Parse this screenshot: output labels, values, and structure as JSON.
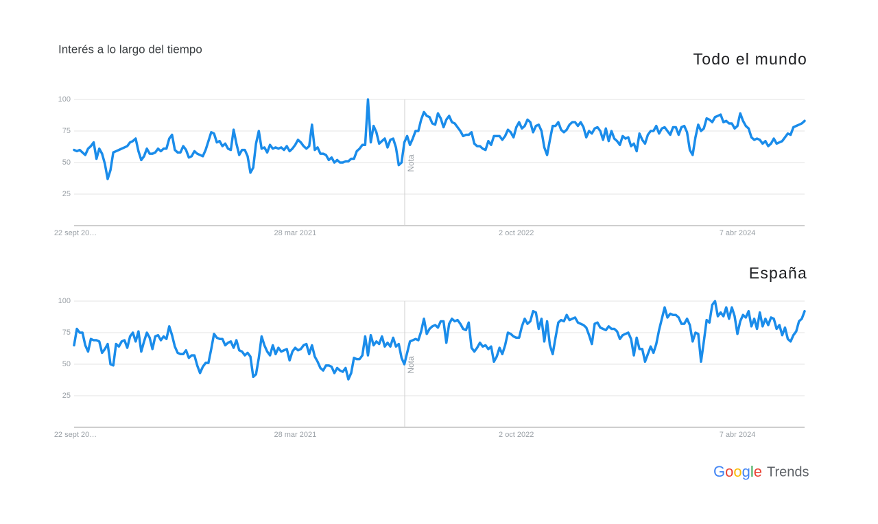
{
  "header": {
    "title": "Interés a lo largo del tiempo"
  },
  "footer": {
    "brand": "Google",
    "product": "Trends"
  },
  "chart_data": [
    {
      "type": "line",
      "title": "Todo el mundo",
      "annotation": "Nota",
      "color": "#1a8cea",
      "ylim": [
        0,
        100
      ],
      "yticks": [
        25,
        50,
        75,
        100
      ],
      "grid": true,
      "categories": [
        "22 sept 20…",
        null,
        null,
        null,
        null,
        null,
        null,
        null,
        null,
        null,
        null,
        null,
        null,
        null,
        null,
        null,
        null,
        null,
        null,
        null,
        null,
        null,
        null,
        null,
        null,
        null,
        null,
        null,
        null,
        null,
        null,
        null,
        null,
        null,
        null,
        null,
        null,
        null,
        null,
        null,
        null,
        null,
        null,
        null,
        null,
        null,
        null,
        null,
        null,
        null,
        null,
        null,
        null,
        null,
        null,
        null,
        null,
        null,
        null,
        null,
        null,
        null,
        null,
        null,
        null,
        null,
        null,
        null,
        null,
        null,
        null,
        null,
        null,
        null,
        null,
        null,
        null,
        null,
        null,
        "28 mar 2021",
        null,
        null,
        null,
        null,
        null,
        null,
        null,
        null,
        null,
        null,
        null,
        null,
        null,
        null,
        null,
        null,
        null,
        null,
        null,
        null,
        null,
        null,
        null,
        null,
        null,
        null,
        null,
        null,
        null,
        null,
        null,
        null,
        null,
        null,
        null,
        null,
        null,
        null,
        null,
        null,
        null,
        null,
        null,
        null,
        null,
        null,
        null,
        null,
        null,
        null,
        null,
        null,
        null,
        null,
        null,
        null,
        null,
        null,
        null,
        null,
        null,
        null,
        null,
        null,
        null,
        null,
        null,
        null,
        null,
        null,
        null,
        null,
        null,
        null,
        null,
        null,
        null,
        null,
        "2 oct 2022",
        null,
        null,
        null,
        null,
        null,
        null,
        null,
        null,
        null,
        null,
        null,
        null,
        null,
        null,
        null,
        null,
        null,
        null,
        null,
        null,
        null,
        null,
        null,
        null,
        null,
        null,
        null,
        null,
        null,
        null,
        null,
        null,
        null,
        null,
        null,
        null,
        null,
        null,
        null,
        null,
        null,
        null,
        null,
        null,
        null,
        null,
        null,
        null,
        null,
        null,
        null,
        null,
        null,
        null,
        null,
        null,
        null,
        null,
        null,
        null,
        null,
        null,
        null,
        null,
        null,
        null,
        null,
        null,
        null,
        null,
        null,
        null,
        null,
        null,
        null,
        null,
        null,
        null,
        "7 abr 2024",
        null,
        null,
        null,
        null,
        null,
        null,
        null,
        null,
        null,
        null,
        null,
        null,
        null,
        null,
        null,
        null,
        null,
        null,
        null,
        null,
        null,
        null,
        null,
        null
      ],
      "values": [
        60,
        59,
        60,
        58,
        56,
        61,
        63,
        66,
        53,
        61,
        57,
        49,
        37,
        44,
        58,
        59,
        60,
        61,
        62,
        63,
        66,
        67,
        69,
        59,
        52,
        55,
        61,
        57,
        57,
        58,
        61,
        59,
        61,
        61,
        69,
        72,
        60,
        58,
        58,
        63,
        60,
        54,
        55,
        59,
        57,
        56,
        55,
        60,
        67,
        74,
        73,
        66,
        67,
        63,
        65,
        61,
        60,
        76,
        65,
        56,
        60,
        60,
        55,
        42,
        46,
        65,
        75,
        61,
        62,
        58,
        64,
        61,
        62,
        61,
        62,
        60,
        63,
        59,
        61,
        64,
        68,
        66,
        63,
        61,
        63,
        80,
        60,
        62,
        57,
        57,
        56,
        52,
        54,
        50,
        52,
        50,
        50,
        51,
        51,
        53,
        53,
        59,
        61,
        64,
        64,
        100,
        66,
        79,
        74,
        65,
        67,
        69,
        62,
        68,
        69,
        62,
        48,
        50,
        66,
        71,
        64,
        69,
        75,
        75,
        84,
        90,
        87,
        86,
        81,
        80,
        89,
        85,
        78,
        84,
        87,
        82,
        81,
        78,
        75,
        71,
        72,
        72,
        74,
        65,
        63,
        63,
        61,
        60,
        67,
        64,
        71,
        71,
        71,
        68,
        71,
        76,
        74,
        70,
        78,
        82,
        77,
        79,
        84,
        82,
        74,
        79,
        80,
        75,
        62,
        56,
        68,
        79,
        79,
        82,
        76,
        74,
        76,
        80,
        82,
        82,
        79,
        82,
        78,
        70,
        75,
        73,
        77,
        78,
        75,
        68,
        77,
        67,
        75,
        69,
        67,
        64,
        71,
        69,
        70,
        63,
        65,
        59,
        73,
        68,
        65,
        72,
        75,
        75,
        79,
        73,
        77,
        78,
        75,
        72,
        78,
        78,
        72,
        78,
        79,
        74,
        60,
        56,
        70,
        80,
        75,
        77,
        85,
        84,
        82,
        86,
        87,
        88,
        82,
        83,
        81,
        81,
        77,
        79,
        89,
        83,
        79,
        77,
        70,
        68,
        69,
        68,
        65,
        67,
        63,
        65,
        69,
        65,
        66,
        67,
        70,
        73,
        72,
        78,
        79,
        80,
        81,
        83
      ]
    },
    {
      "type": "line",
      "title": "España",
      "annotation": "Nota",
      "color": "#1a8cea",
      "ylim": [
        0,
        100
      ],
      "yticks": [
        25,
        50,
        75,
        100
      ],
      "grid": true,
      "categories": [
        "22 sept 20…",
        null,
        null,
        null,
        null,
        null,
        null,
        null,
        null,
        null,
        null,
        null,
        null,
        null,
        null,
        null,
        null,
        null,
        null,
        null,
        null,
        null,
        null,
        null,
        null,
        null,
        null,
        null,
        null,
        null,
        null,
        null,
        null,
        null,
        null,
        null,
        null,
        null,
        null,
        null,
        null,
        null,
        null,
        null,
        null,
        null,
        null,
        null,
        null,
        null,
        null,
        null,
        null,
        null,
        null,
        null,
        null,
        null,
        null,
        null,
        null,
        null,
        null,
        null,
        null,
        null,
        null,
        null,
        null,
        null,
        null,
        null,
        null,
        null,
        null,
        null,
        null,
        null,
        null,
        "28 mar 2021",
        null,
        null,
        null,
        null,
        null,
        null,
        null,
        null,
        null,
        null,
        null,
        null,
        null,
        null,
        null,
        null,
        null,
        null,
        null,
        null,
        null,
        null,
        null,
        null,
        null,
        null,
        null,
        null,
        null,
        null,
        null,
        null,
        null,
        null,
        null,
        null,
        null,
        null,
        null,
        null,
        null,
        null,
        null,
        null,
        null,
        null,
        null,
        null,
        null,
        null,
        null,
        null,
        null,
        null,
        null,
        null,
        null,
        null,
        null,
        null,
        null,
        null,
        null,
        null,
        null,
        null,
        null,
        null,
        null,
        null,
        null,
        null,
        null,
        null,
        null,
        null,
        null,
        null,
        "2 oct 2022",
        null,
        null,
        null,
        null,
        null,
        null,
        null,
        null,
        null,
        null,
        null,
        null,
        null,
        null,
        null,
        null,
        null,
        null,
        null,
        null,
        null,
        null,
        null,
        null,
        null,
        null,
        null,
        null,
        null,
        null,
        null,
        null,
        null,
        null,
        null,
        null,
        null,
        null,
        null,
        null,
        null,
        null,
        null,
        null,
        null,
        null,
        null,
        null,
        null,
        null,
        null,
        null,
        null,
        null,
        null,
        null,
        null,
        null,
        null,
        null,
        null,
        null,
        null,
        null,
        null,
        null,
        null,
        null,
        null,
        null,
        null,
        null,
        null,
        null,
        null,
        null,
        null,
        null,
        "7 abr 2024",
        null,
        null,
        null,
        null,
        null,
        null,
        null,
        null,
        null,
        null,
        null,
        null,
        null,
        null,
        null,
        null,
        null,
        null,
        null,
        null,
        null,
        null,
        null,
        null
      ],
      "values": [
        65,
        78,
        75,
        75,
        65,
        60,
        70,
        69,
        69,
        68,
        59,
        62,
        66,
        50,
        49,
        66,
        64,
        68,
        69,
        63,
        72,
        75,
        68,
        76,
        60,
        68,
        75,
        71,
        62,
        72,
        73,
        69,
        72,
        70,
        80,
        73,
        64,
        59,
        58,
        58,
        61,
        55,
        57,
        57,
        49,
        43,
        48,
        51,
        51,
        62,
        74,
        71,
        70,
        70,
        65,
        67,
        68,
        63,
        69,
        61,
        60,
        57,
        59,
        56,
        40,
        42,
        55,
        72,
        65,
        60,
        57,
        65,
        58,
        63,
        60,
        61,
        62,
        53,
        60,
        63,
        61,
        62,
        65,
        66,
        58,
        65,
        56,
        52,
        47,
        45,
        49,
        49,
        48,
        43,
        47,
        45,
        44,
        47,
        38,
        43,
        55,
        54,
        54,
        57,
        72,
        57,
        73,
        65,
        68,
        66,
        72,
        64,
        67,
        64,
        71,
        64,
        66,
        55,
        50,
        59,
        68,
        69,
        70,
        69,
        76,
        86,
        74,
        78,
        80,
        81,
        79,
        84,
        84,
        67,
        82,
        86,
        84,
        85,
        82,
        78,
        77,
        83,
        63,
        60,
        63,
        67,
        64,
        65,
        62,
        64,
        52,
        56,
        63,
        58,
        65,
        75,
        74,
        72,
        71,
        71,
        80,
        86,
        82,
        84,
        92,
        91,
        78,
        86,
        68,
        84,
        65,
        58,
        71,
        83,
        85,
        84,
        89,
        85,
        86,
        87,
        83,
        82,
        81,
        79,
        73,
        66,
        82,
        83,
        79,
        78,
        77,
        80,
        78,
        78,
        76,
        70,
        73,
        74,
        75,
        70,
        57,
        71,
        62,
        62,
        52,
        58,
        64,
        59,
        66,
        77,
        86,
        95,
        87,
        90,
        89,
        89,
        87,
        82,
        82,
        86,
        81,
        68,
        75,
        74,
        52,
        68,
        85,
        83,
        97,
        100,
        88,
        91,
        88,
        95,
        86,
        95,
        88,
        74,
        84,
        89,
        87,
        92,
        80,
        86,
        78,
        91,
        80,
        86,
        81,
        87,
        86,
        78,
        81,
        73,
        79,
        70,
        68,
        73,
        76,
        84,
        86,
        92
      ]
    }
  ]
}
